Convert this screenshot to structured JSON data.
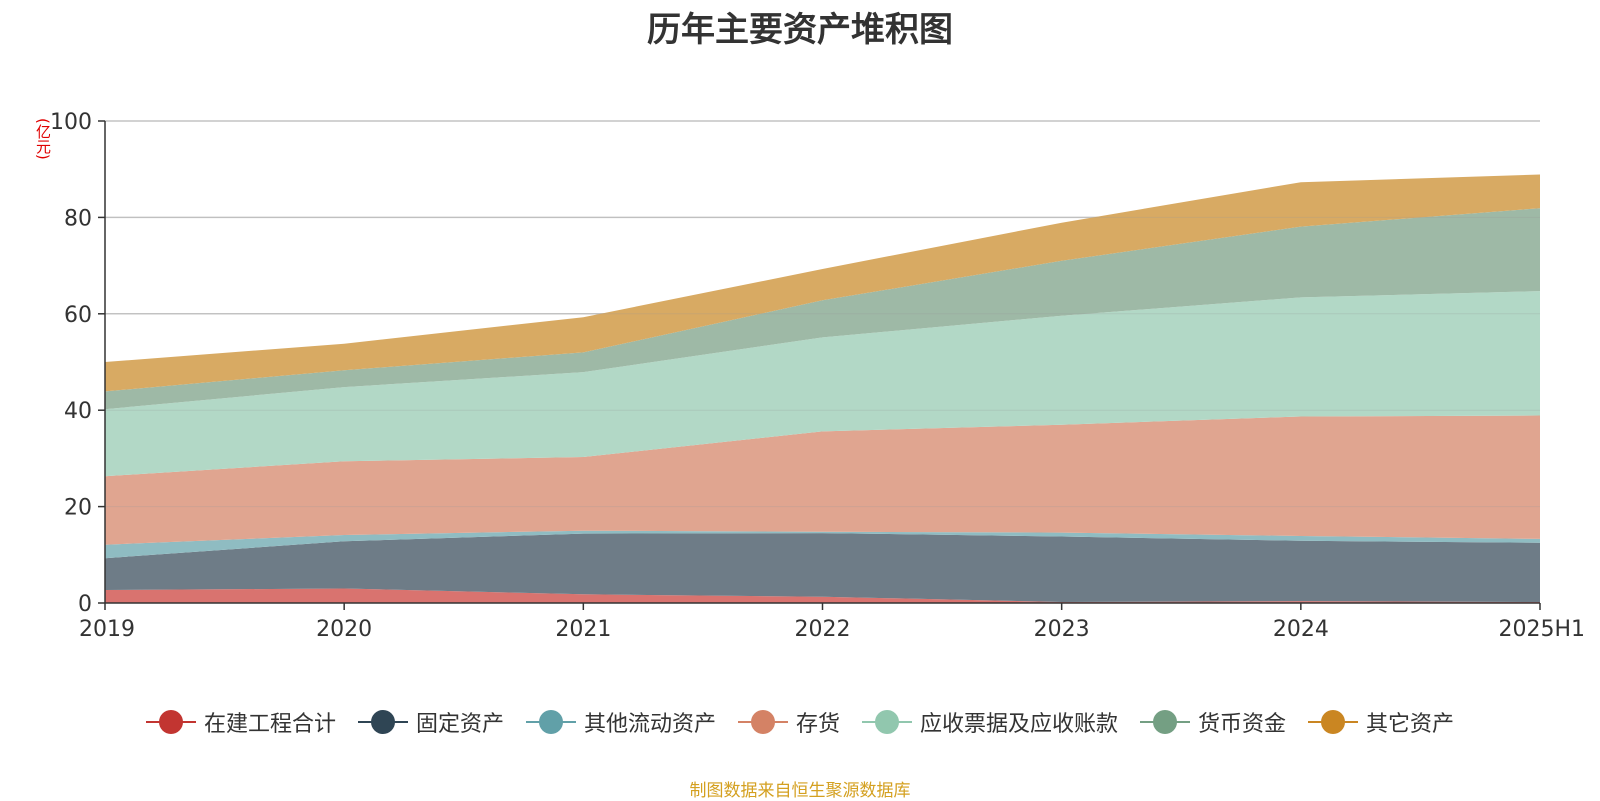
{
  "title": "历年主要资产堆积图",
  "unit": "(亿元)",
  "source_note": "制图数据来自恒生聚源数据库",
  "chart_data": {
    "type": "area",
    "stacked": true,
    "title": "历年主要资产堆积图",
    "x": [
      "2019",
      "2020",
      "2021",
      "2022",
      "2023",
      "2024",
      "2025H1"
    ],
    "ylim": [
      0,
      100
    ],
    "yticks": [
      0,
      20,
      40,
      60,
      80,
      100
    ],
    "grid": true,
    "legend_position": "bottom",
    "series": [
      {
        "name": "在建工程合计",
        "color": "#c23531",
        "fill": "#d9736f",
        "values": [
          2.7,
          3.0,
          1.8,
          1.3,
          0.2,
          0.4,
          0.2
        ]
      },
      {
        "name": "固定资产",
        "color": "#2f4554",
        "fill": "#6e7c87",
        "values": [
          6.6,
          9.8,
          12.6,
          13.2,
          13.6,
          12.5,
          12.3
        ]
      },
      {
        "name": "其他流动资产",
        "color": "#61a0a8",
        "fill": "#8fbcc2",
        "values": [
          2.8,
          1.3,
          0.6,
          0.3,
          0.8,
          1.0,
          0.8
        ]
      },
      {
        "name": "存货",
        "color": "#d48265",
        "fill": "#e0a590",
        "values": [
          14.2,
          15.3,
          15.3,
          20.8,
          22.4,
          24.8,
          25.6
        ]
      },
      {
        "name": "应收票据及应收账款",
        "color": "#91c7ae",
        "fill": "#b2d8c6",
        "values": [
          13.9,
          15.4,
          17.6,
          19.5,
          22.6,
          24.7,
          25.8
        ]
      },
      {
        "name": "货币资金",
        "color": "#749f83",
        "fill": "#9eb9a6",
        "values": [
          3.7,
          3.5,
          4.1,
          7.7,
          11.4,
          14.7,
          17.2
        ]
      },
      {
        "name": "其它资产",
        "color": "#ca8622",
        "fill": "#d8aa63",
        "values": [
          6.1,
          5.5,
          7.3,
          6.5,
          7.9,
          9.2,
          7.0
        ]
      }
    ]
  }
}
